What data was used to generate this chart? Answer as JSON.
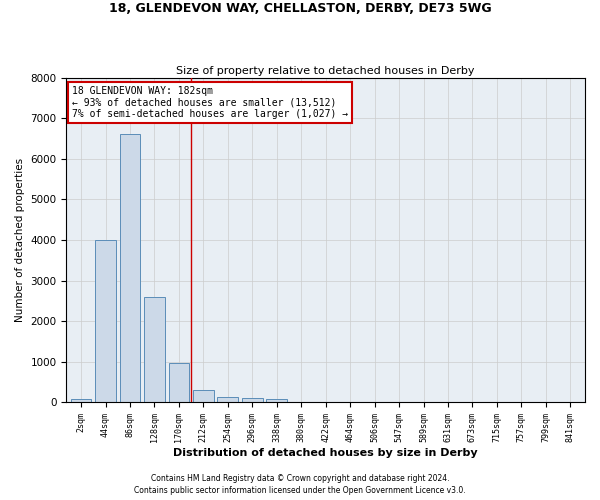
{
  "title_line1": "18, GLENDEVON WAY, CHELLASTON, DERBY, DE73 5WG",
  "title_line2": "Size of property relative to detached houses in Derby",
  "xlabel": "Distribution of detached houses by size in Derby",
  "ylabel": "Number of detached properties",
  "categories": [
    "2sqm",
    "44sqm",
    "86sqm",
    "128sqm",
    "170sqm",
    "212sqm",
    "254sqm",
    "296sqm",
    "338sqm",
    "380sqm",
    "422sqm",
    "464sqm",
    "506sqm",
    "547sqm",
    "589sqm",
    "631sqm",
    "673sqm",
    "715sqm",
    "757sqm",
    "799sqm",
    "841sqm"
  ],
  "values": [
    70,
    4000,
    6600,
    2600,
    960,
    310,
    130,
    110,
    90,
    0,
    0,
    0,
    0,
    0,
    0,
    0,
    0,
    0,
    0,
    0,
    0
  ],
  "bar_color": "#ccd9e8",
  "bar_edge_color": "#5b8db8",
  "grid_color": "#cccccc",
  "background_color": "#e8eef4",
  "vline_x": 4.5,
  "vline_color": "#cc0000",
  "annotation_text": "18 GLENDEVON WAY: 182sqm\n← 93% of detached houses are smaller (13,512)\n7% of semi-detached houses are larger (1,027) →",
  "annotation_box_color": "#ffffff",
  "annotation_border_color": "#cc0000",
  "ylim": [
    0,
    8000
  ],
  "yticks": [
    0,
    1000,
    2000,
    3000,
    4000,
    5000,
    6000,
    7000,
    8000
  ],
  "footer_line1": "Contains HM Land Registry data © Crown copyright and database right 2024.",
  "footer_line2": "Contains public sector information licensed under the Open Government Licence v3.0."
}
